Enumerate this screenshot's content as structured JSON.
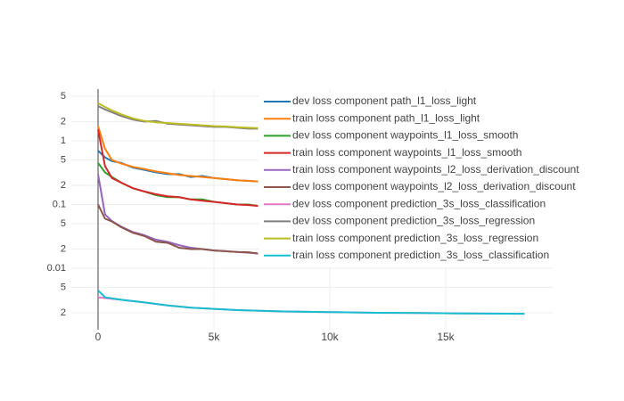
{
  "chart_data": {
    "type": "line",
    "log_y": true,
    "grid": true,
    "zeroline": true,
    "legend": "top-right",
    "xlim": [
      -1154,
      19615
    ],
    "ylim": [
      0.001084,
      6.47
    ],
    "xticks": [
      0,
      {
        "value": 5000,
        "label": "5k"
      },
      {
        "value": 10000,
        "label": "10k"
      },
      {
        "value": 15000,
        "label": "15k"
      }
    ],
    "yticks": [
      5,
      2,
      1,
      {
        "value": 0.5,
        "label": "5"
      },
      {
        "value": 0.2,
        "label": "2"
      },
      0.1,
      {
        "value": 0.05,
        "label": "5"
      },
      {
        "value": 0.02,
        "label": "2"
      },
      0.01,
      {
        "value": 0.005,
        "label": "5"
      },
      {
        "value": 0.002,
        "label": "2"
      }
    ],
    "series": [
      {
        "name": "dev loss component path_l1_loss_light",
        "color": "#1f77b4",
        "x": [
          0,
          300,
          600,
          1000,
          1500,
          2000,
          2500,
          3000,
          3500,
          4000,
          4500,
          5000,
          5500,
          6000,
          6500,
          6900
        ],
        "values": [
          0.7,
          0.55,
          0.48,
          0.45,
          0.38,
          0.35,
          0.32,
          0.3,
          0.3,
          0.27,
          0.28,
          0.26,
          0.25,
          0.24,
          0.235,
          0.23
        ]
      },
      {
        "name": "train loss component path_l1_loss_light",
        "color": "#ff7f0e",
        "x": [
          0,
          300,
          600,
          1000,
          1500,
          2000,
          2500,
          3000,
          3500,
          4000,
          4500,
          5000,
          5500,
          6000,
          6500,
          6900
        ],
        "values": [
          1.7,
          0.75,
          0.5,
          0.44,
          0.39,
          0.36,
          0.33,
          0.31,
          0.29,
          0.28,
          0.27,
          0.26,
          0.25,
          0.24,
          0.235,
          0.23
        ]
      },
      {
        "name": "dev loss component waypoints_l1_loss_smooth",
        "color": "#2ca02c",
        "x": [
          0,
          300,
          600,
          1000,
          1500,
          2000,
          2500,
          3000,
          3500,
          4000,
          4500,
          5000,
          5500,
          6000,
          6500,
          6900
        ],
        "values": [
          0.45,
          0.32,
          0.27,
          0.22,
          0.18,
          0.16,
          0.14,
          0.13,
          0.13,
          0.12,
          0.12,
          0.11,
          0.105,
          0.1,
          0.1,
          0.095
        ]
      },
      {
        "name": "train loss component waypoints_l1_loss_smooth",
        "color": "#d62728",
        "x": [
          0,
          300,
          600,
          1000,
          1500,
          2000,
          2500,
          3000,
          3500,
          4000,
          4500,
          5000,
          5500,
          6000,
          6500,
          6900
        ],
        "values": [
          1.5,
          0.4,
          0.26,
          0.22,
          0.18,
          0.16,
          0.145,
          0.135,
          0.13,
          0.12,
          0.115,
          0.11,
          0.105,
          0.1,
          0.098,
          0.095
        ]
      },
      {
        "name": "train loss component waypoints_l2_loss_derivation_discount",
        "color": "#9467bd",
        "x": [
          0,
          300,
          600,
          1000,
          1500,
          2000,
          2500,
          3000,
          3500,
          4000,
          4500,
          5000,
          5500,
          6000,
          6500,
          6900
        ],
        "values": [
          0.3,
          0.07,
          0.055,
          0.045,
          0.037,
          0.033,
          0.028,
          0.026,
          0.023,
          0.021,
          0.02,
          0.019,
          0.0185,
          0.018,
          0.0175,
          0.017
        ]
      },
      {
        "name": "dev loss component waypoints_l2_loss_derivation_discount",
        "color": "#8c564b",
        "x": [
          0,
          300,
          600,
          1000,
          1500,
          2000,
          2500,
          3000,
          3500,
          4000,
          4500,
          5000,
          5500,
          6000,
          6500,
          6900
        ],
        "values": [
          0.1,
          0.06,
          0.054,
          0.044,
          0.036,
          0.032,
          0.026,
          0.025,
          0.021,
          0.02,
          0.02,
          0.019,
          0.0185,
          0.018,
          0.0178,
          0.017
        ]
      },
      {
        "name": "dev loss component prediction_3s_loss_classification",
        "color": "#e377c2",
        "x": [
          0,
          300,
          1000,
          2000,
          3000,
          4000,
          5000,
          6000,
          8000,
          10000,
          12000,
          14000,
          16000,
          18400
        ],
        "values": [
          0.0035,
          0.0034,
          0.0032,
          0.0029,
          0.0026,
          0.0024,
          0.0023,
          0.0022,
          0.0021,
          0.00205,
          0.002,
          0.00198,
          0.00195,
          0.00193
        ]
      },
      {
        "name": "dev loss component prediction_3s_loss_regression",
        "color": "#7f7f7f",
        "x": [
          0,
          300,
          600,
          1000,
          1500,
          2000,
          2500,
          3000,
          3500,
          4000,
          4500,
          5000,
          5500,
          6000,
          6500,
          6900
        ],
        "values": [
          3.5,
          3.1,
          2.8,
          2.45,
          2.15,
          2.0,
          2.05,
          1.85,
          1.8,
          1.75,
          1.7,
          1.65,
          1.65,
          1.6,
          1.55,
          1.55
        ]
      },
      {
        "name": "train loss component prediction_3s_loss_regression",
        "color": "#bcbd22",
        "x": [
          0,
          300,
          600,
          1000,
          1500,
          2000,
          2500,
          3000,
          3500,
          4000,
          4500,
          5000,
          5500,
          6000,
          6500,
          6900
        ],
        "values": [
          3.9,
          3.4,
          3.0,
          2.6,
          2.25,
          2.05,
          1.95,
          1.9,
          1.85,
          1.8,
          1.75,
          1.7,
          1.68,
          1.63,
          1.6,
          1.58
        ]
      },
      {
        "name": "train loss component prediction_3s_loss_classification",
        "color": "#17becf",
        "x": [
          0,
          300,
          1000,
          2000,
          3000,
          4000,
          5000,
          6000,
          8000,
          10000,
          12000,
          14000,
          16000,
          18400
        ],
        "values": [
          0.0045,
          0.0035,
          0.0032,
          0.0029,
          0.0026,
          0.0024,
          0.0023,
          0.0022,
          0.0021,
          0.00205,
          0.002,
          0.00198,
          0.00195,
          0.00193
        ]
      }
    ]
  }
}
